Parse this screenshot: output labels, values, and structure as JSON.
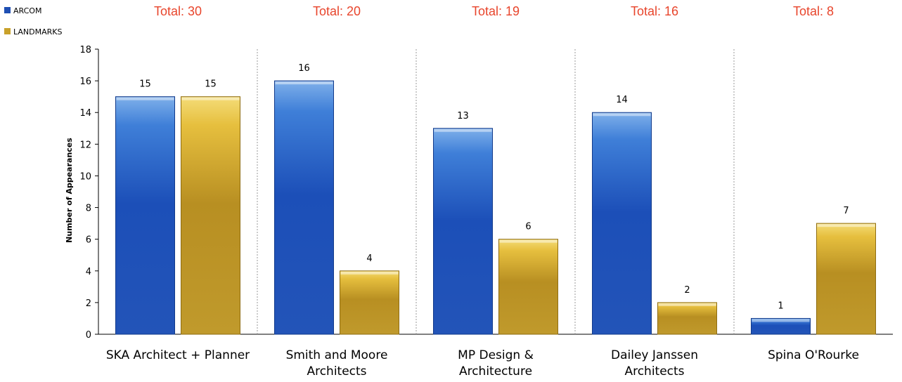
{
  "chart_data": {
    "type": "bar",
    "categories": [
      [
        "SKA Architect + Planner"
      ],
      [
        "Smith and Moore",
        "Architects"
      ],
      [
        "MP Design &",
        "Architecture"
      ],
      [
        "Dailey Janssen",
        "Architects"
      ],
      [
        "Spina O'Rourke"
      ]
    ],
    "series": [
      {
        "name": "ARCOM",
        "values": [
          15,
          16,
          13,
          14,
          1
        ],
        "color": "#1f4fb3"
      },
      {
        "name": "LANDMARKS",
        "values": [
          15,
          4,
          6,
          2,
          7
        ],
        "color": "#c9a12a"
      }
    ],
    "totals": [
      "Total: 30",
      "Total: 20",
      "Total: 19",
      "Total: 16",
      "Total: 8"
    ],
    "totals_color": "#e8452c",
    "ylabel": "Number of Appearances",
    "ylim": [
      0,
      18
    ],
    "yticks": [
      0,
      2,
      4,
      6,
      8,
      10,
      12,
      14,
      16,
      18
    ],
    "grid": false,
    "group_separators": true,
    "legend_position": "top-left"
  }
}
